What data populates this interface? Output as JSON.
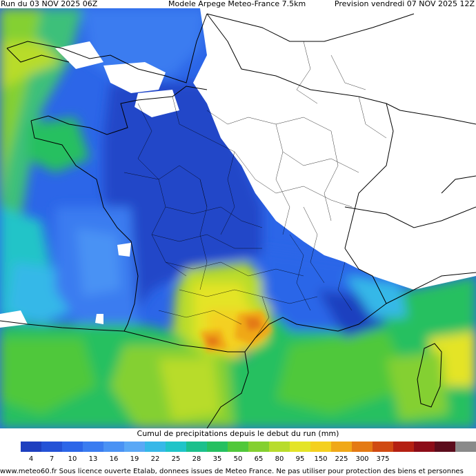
{
  "header": {
    "run": "Run du 03 NOV 2025 06Z",
    "model": "Modele Arpege Meteo-France 7.5km",
    "forecast": "Prevision vendredi 07 NOV 2025 12Z"
  },
  "legend": {
    "title": "Cumul de precipitations depuis le debut du run (mm)",
    "ticks": [
      "4",
      "7",
      "10",
      "13",
      "16",
      "19",
      "22",
      "25",
      "28",
      "35",
      "50",
      "65",
      "80",
      "95",
      "150",
      "225",
      "300",
      "375"
    ],
    "colors": [
      "#ffffff",
      "#1e3fbf",
      "#2452d6",
      "#2c66e8",
      "#3a7cf0",
      "#4a92f4",
      "#5aa8f6",
      "#36b8e8",
      "#20c4c8",
      "#1cc08c",
      "#26c060",
      "#50c83a",
      "#84d030",
      "#b8dc2c",
      "#e4e428",
      "#f4d020",
      "#f0a818",
      "#e47a14",
      "#d04a12",
      "#b42012",
      "#8c0c18",
      "#5c0c1c",
      "#8a8a8a"
    ]
  },
  "footer": {
    "credit": "www.meteo60.fr Sous licence ouverte Etalab, donnees issues de Meteo France. Ne pas utiliser pour protection des biens et personnes"
  }
}
